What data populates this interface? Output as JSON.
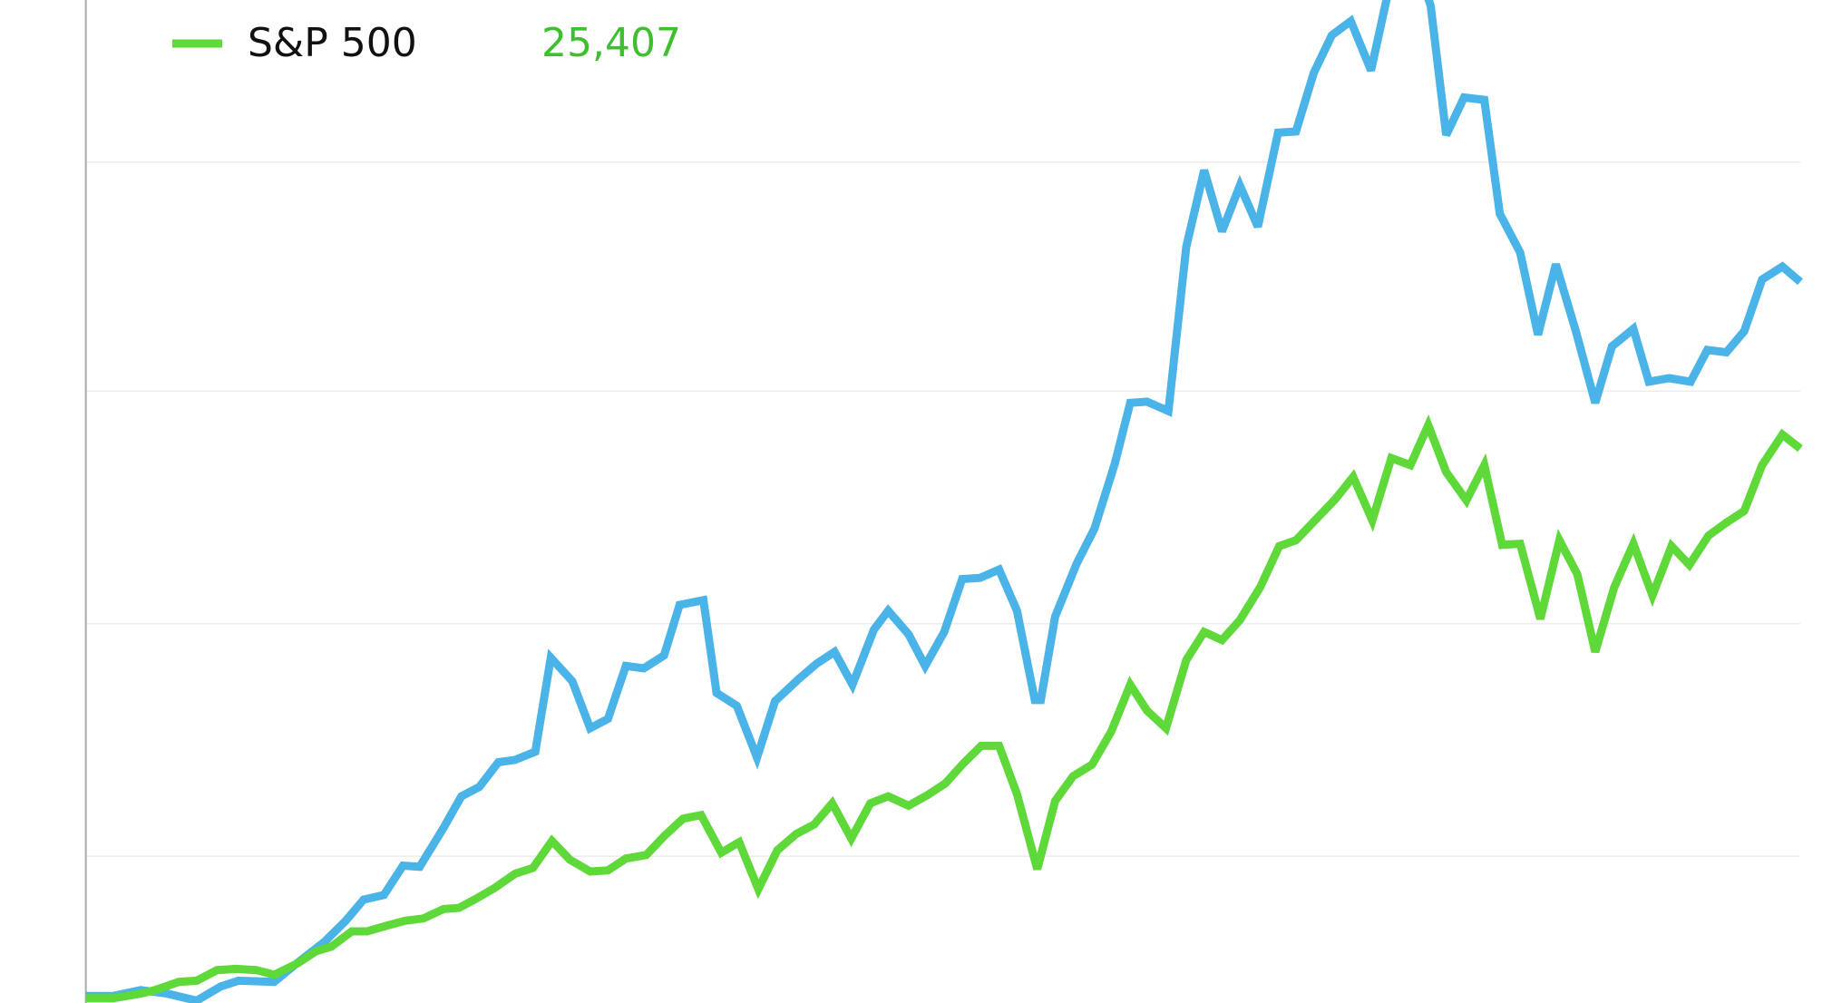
{
  "chart_data": {
    "type": "line",
    "xlim": [
      0,
      1545
    ],
    "ylim": [
      0,
      854
    ],
    "yticks": [
      125,
      323,
      521,
      716
    ],
    "grid": true,
    "series": [
      {
        "color": "#4ab3e8",
        "x": [
          72,
          95,
          118,
          140,
          165,
          185,
          200,
          230,
          248,
          272,
          290,
          305,
          322,
          338,
          352,
          372,
          387,
          402,
          418,
          432,
          449,
          462,
          480,
          495,
          510,
          525,
          540,
          557,
          570,
          590,
          601,
          618,
          635,
          650,
          670,
          685,
          700,
          715,
          733,
          745,
          762,
          776,
          792,
          807,
          822,
          838,
          853,
          868,
          873,
          885,
          903,
          918,
          935,
          948,
          962,
          980,
          995,
          1010,
          1025,
          1040,
          1055,
          1072,
          1087,
          1102,
          1117,
          1133,
          1150,
          1165,
          1195,
          1200,
          1213,
          1228,
          1245,
          1258,
          1275,
          1290,
          1305,
          1322,
          1338,
          1352,
          1370,
          1383,
          1400,
          1418,
          1432,
          1448,
          1463,
          1478,
          1495,
          1510
        ],
        "values": [
          6,
          6,
          11,
          8,
          2,
          14,
          19,
          18,
          33,
          52,
          70,
          88,
          92,
          117,
          116,
          149,
          176,
          184,
          205,
          207,
          214,
          294,
          274,
          234,
          242,
          287,
          285,
          296,
          339,
          343,
          264,
          253,
          209,
          257,
          276,
          289,
          299,
          271,
          318,
          334,
          314,
          287,
          316,
          361,
          362,
          369,
          334,
          258,
          258,
          329,
          374,
          404,
          459,
          511,
          512,
          504,
          644,
          709,
          657,
          696,
          661,
          741,
          742,
          792,
          824,
          836,
          794,
          864,
          864,
          849,
          739,
          771,
          769,
          672,
          639,
          569,
          629,
          571,
          511,
          559,
          574,
          529,
          532,
          529,
          556,
          554,
          572,
          616,
          627,
          614
        ]
      },
      {
        "name": "S&P 500",
        "color": "#5fd83a",
        "value_label": "25,407",
        "label_color": "#3dbf2f",
        "x": [
          72,
          95,
          118,
          130,
          150,
          165,
          182,
          198,
          215,
          230,
          250,
          265,
          278,
          295,
          308,
          325,
          340,
          355,
          372,
          385,
          398,
          415,
          432,
          447,
          463,
          478,
          495,
          510,
          525,
          542,
          558,
          573,
          588,
          605,
          620,
          636,
          652,
          668,
          683,
          698,
          714,
          730,
          745,
          762,
          778,
          793,
          808,
          823,
          838,
          853,
          870,
          885,
          900,
          916,
          932,
          948,
          962,
          978,
          995,
          1010,
          1025,
          1040,
          1057,
          1073,
          1087,
          1104,
          1120,
          1135,
          1151,
          1167,
          1183,
          1198,
          1213,
          1230,
          1245,
          1260,
          1275,
          1292,
          1308,
          1323,
          1338,
          1354,
          1370,
          1386,
          1402,
          1417,
          1433,
          1448,
          1463,
          1478,
          1495,
          1510
        ],
        "values": [
          4,
          4,
          8,
          11,
          18,
          19,
          28,
          29,
          28,
          24,
          34,
          44,
          48,
          61,
          61,
          66,
          70,
          72,
          80,
          81,
          88,
          98,
          110,
          115,
          138,
          122,
          112,
          113,
          123,
          126,
          143,
          157,
          160,
          128,
          137,
          97,
          130,
          144,
          152,
          170,
          140,
          170,
          176,
          168,
          177,
          187,
          204,
          219,
          219,
          178,
          114,
          172,
          193,
          203,
          231,
          271,
          249,
          234,
          292,
          316,
          309,
          326,
          354,
          389,
          394,
          412,
          429,
          448,
          411,
          464,
          458,
          492,
          452,
          428,
          458,
          390,
          391,
          327,
          394,
          365,
          299,
          354,
          391,
          347,
          389,
          373,
          398,
          409,
          419,
          458,
          484,
          472
        ]
      }
    ]
  }
}
